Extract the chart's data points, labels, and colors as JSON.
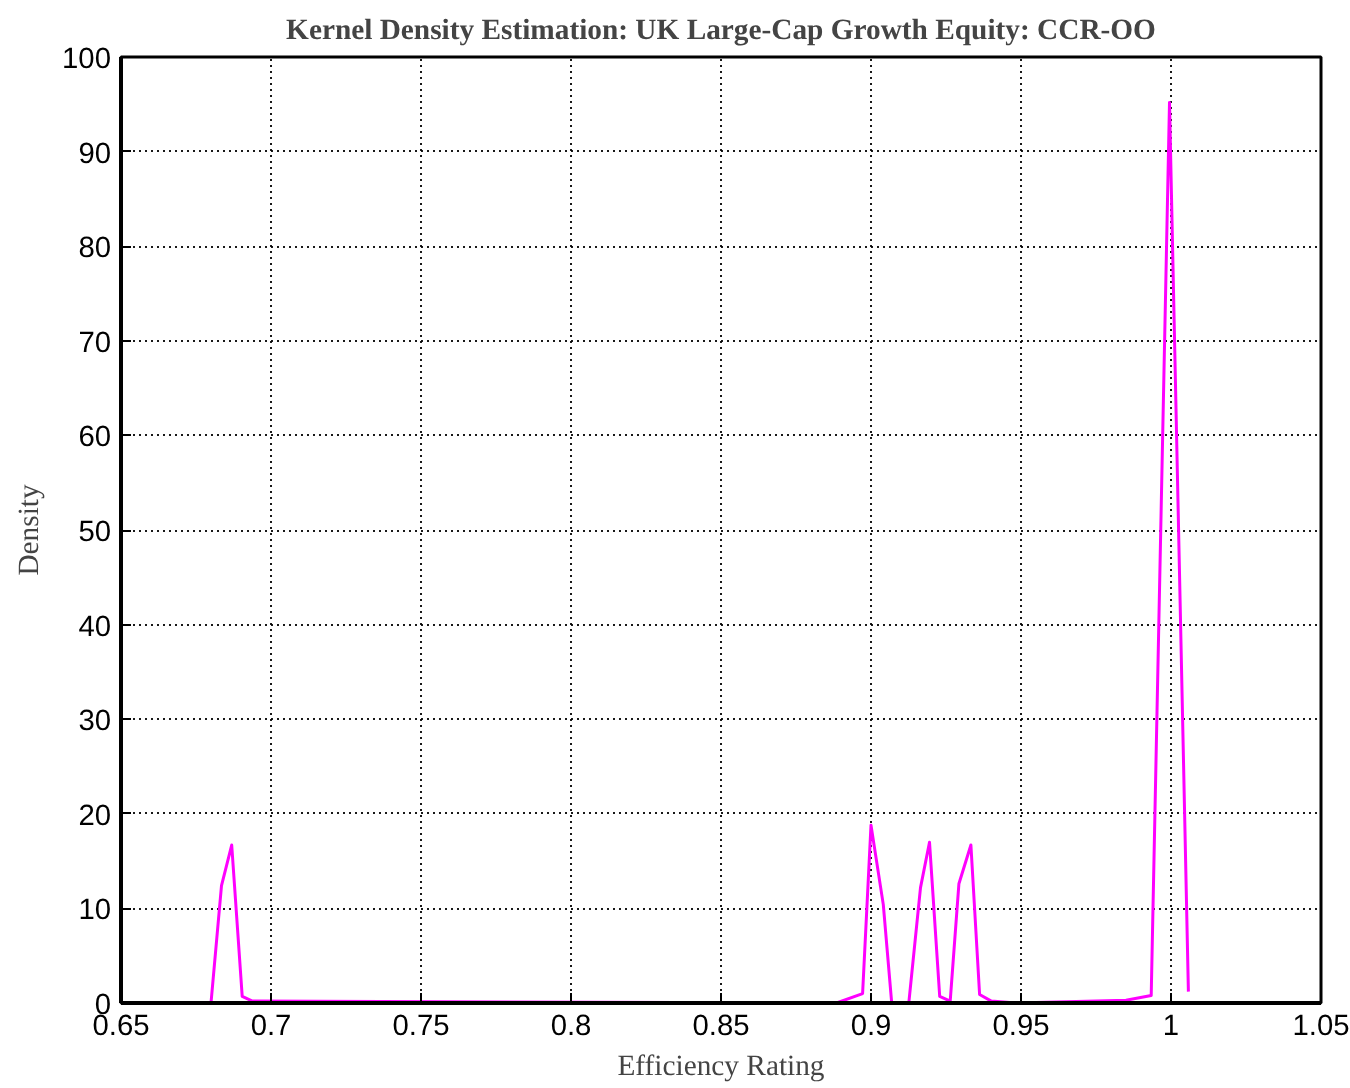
{
  "chart_data": {
    "type": "line",
    "title": "Kernel Density Estimation: UK Large-Cap Growth Equity: CCR-OO",
    "xlabel": "Efficiency Rating",
    "ylabel": "Density",
    "xlim": [
      0.65,
      1.05
    ],
    "ylim": [
      0,
      100
    ],
    "xticks": [
      0.65,
      0.7,
      0.75,
      0.8,
      0.85,
      0.9,
      0.95,
      1,
      1.05
    ],
    "yticks": [
      0,
      10,
      20,
      30,
      40,
      50,
      60,
      70,
      80,
      90,
      100
    ],
    "grid": true,
    "marker": "none",
    "line_style": "solid",
    "series": [
      {
        "color": "#ff00ff",
        "x": [
          0.68,
          0.6835,
          0.6869,
          0.6904,
          0.6938,
          0.8885,
          0.8972,
          0.9,
          0.9041,
          0.9069,
          0.9126,
          0.9165,
          0.9195,
          0.9229,
          0.9264,
          0.9293,
          0.9333,
          0.9362,
          0.9401,
          0.9484,
          0.985,
          0.9934,
          0.9995,
          1.0058
        ],
        "values": [
          0,
          12.4,
          16.7,
          0.7,
          0.2,
          0,
          1,
          18.8,
          10.4,
          0,
          0,
          12.2,
          17,
          0.7,
          0.2,
          12.6,
          16.7,
          0.9,
          0.2,
          0,
          0.3,
          0.8,
          95.2,
          1.2
        ]
      }
    ]
  }
}
